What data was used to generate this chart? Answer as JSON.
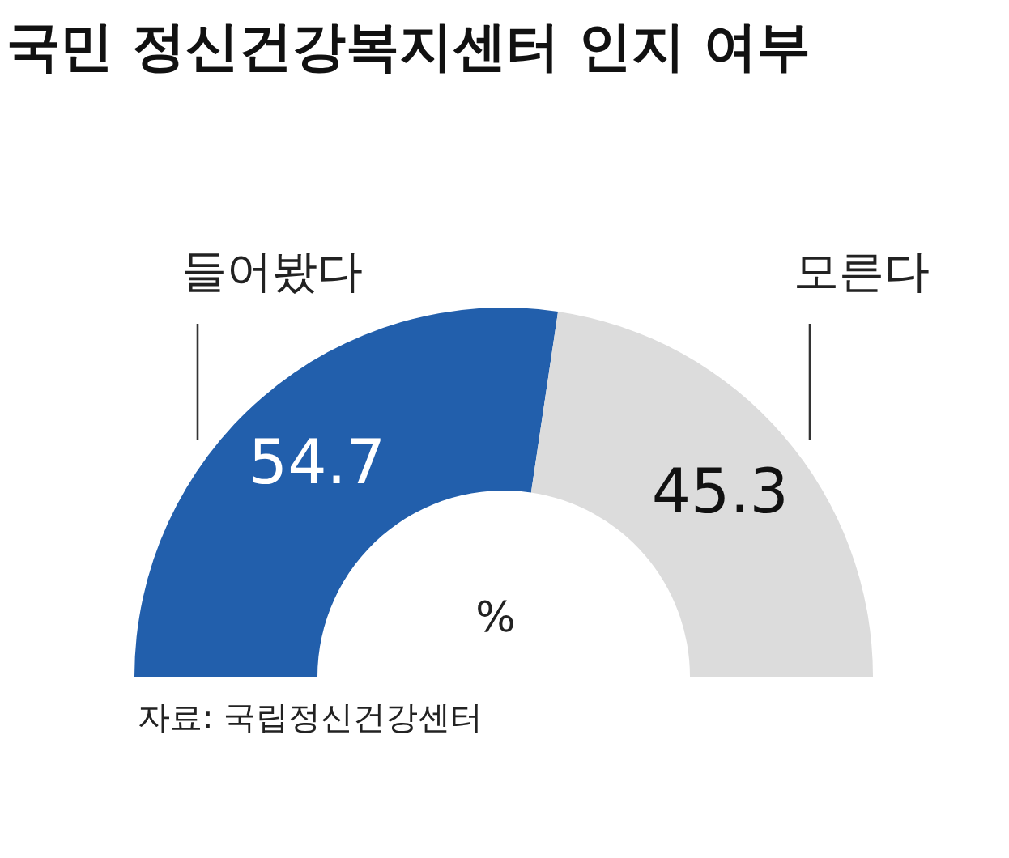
{
  "chart_data": {
    "type": "donut",
    "title": "국민 정신건강복지센터 인지 여부",
    "categories": [
      "들어봤다",
      "모른다"
    ],
    "values": [
      54.7,
      45.3
    ],
    "colors": [
      "#225fac",
      "#dcdcdc"
    ],
    "data_labels": true,
    "annotations": [
      "%",
      "자료: 국립정신건강센터"
    ]
  }
}
